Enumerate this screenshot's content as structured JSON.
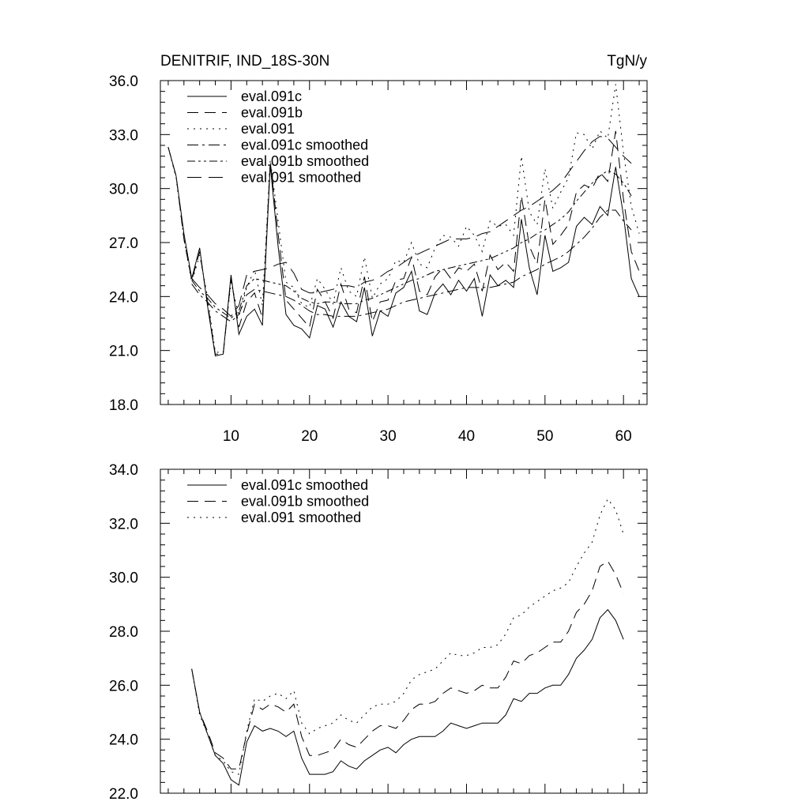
{
  "chart_data": [
    {
      "type": "line",
      "title": "DENITRIF, IND_18S-30N",
      "units": "TgN/y",
      "xlabel": "",
      "ylabel": "",
      "xlim": [
        1,
        63
      ],
      "ylim": [
        18.0,
        36.0
      ],
      "x_ticks": [
        "10",
        "20",
        "30",
        "40",
        "50",
        "60"
      ],
      "y_ticks": [
        "18.0",
        "21.0",
        "24.0",
        "27.0",
        "30.0",
        "33.0",
        "36.0"
      ],
      "legend_position": "top-left",
      "x_start": 2,
      "series": [
        {
          "name": "eval.091c",
          "style": "solid",
          "values": [
            32.3,
            30.7,
            27.5,
            25.0,
            26.7,
            23.5,
            20.7,
            20.8,
            25.2,
            21.9,
            22.9,
            23.3,
            22.4,
            31.3,
            26.8,
            23.0,
            22.4,
            22.2,
            21.7,
            23.5,
            23.3,
            22.3,
            23.7,
            22.9,
            22.6,
            24.5,
            21.8,
            23.2,
            22.9,
            24.2,
            24.5,
            25.4,
            23.2,
            23.0,
            24.2,
            24.7,
            24.1,
            24.9,
            24.3,
            25.0,
            22.9,
            25.2,
            24.6,
            24.9,
            24.5,
            28.3,
            25.6,
            24.1,
            27.4,
            25.4,
            25.6,
            25.9,
            27.9,
            28.4,
            28.0,
            29.0,
            28.5,
            31.2,
            28.5,
            25.0,
            24.0
          ]
        },
        {
          "name": "eval.091b",
          "style": "dashed",
          "values": [
            32.3,
            30.7,
            27.2,
            24.9,
            26.5,
            23.7,
            20.8,
            20.8,
            25.0,
            22.3,
            23.7,
            24.2,
            22.8,
            31.5,
            27.5,
            23.8,
            23.3,
            22.8,
            22.3,
            24.4,
            23.7,
            22.8,
            24.7,
            23.3,
            23.1,
            25.1,
            22.6,
            23.7,
            23.8,
            24.9,
            25.0,
            26.2,
            24.3,
            24.1,
            25.1,
            25.6,
            25.0,
            25.6,
            25.4,
            25.8,
            24.3,
            26.3,
            25.5,
            25.9,
            25.4,
            29.6,
            26.8,
            25.8,
            29.4,
            26.9,
            27.4,
            28.0,
            29.8,
            30.2,
            30.0,
            30.9,
            30.4,
            33.2,
            29.4,
            26.5,
            25.4
          ]
        },
        {
          "name": "eval.091",
          "style": "dotted",
          "values": [
            32.3,
            30.6,
            27.2,
            24.8,
            26.3,
            24.0,
            20.9,
            20.9,
            24.8,
            22.9,
            24.5,
            25.5,
            23.5,
            31.6,
            28.2,
            24.8,
            24.5,
            23.6,
            23.4,
            25.0,
            24.4,
            23.6,
            25.6,
            24.3,
            24.0,
            26.2,
            23.9,
            24.7,
            25.0,
            26.0,
            25.9,
            27.0,
            25.8,
            25.6,
            26.7,
            27.4,
            27.3,
            26.8,
            27.9,
            27.4,
            26.5,
            28.2,
            27.9,
            28.0,
            27.4,
            31.8,
            28.7,
            28.0,
            31.1,
            28.9,
            29.8,
            30.6,
            33.1,
            33.0,
            32.2,
            33.2,
            32.8,
            35.8,
            32.0,
            29.0,
            27.5
          ]
        },
        {
          "name": "eval.091c smoothed",
          "style": "dashdot",
          "values": [
            null,
            null,
            null,
            24.7,
            24.1,
            23.7,
            23.2,
            22.9,
            22.6,
            23.0,
            24.1,
            24.4,
            24.3,
            24.2,
            24.1,
            24.0,
            23.8,
            23.5,
            23.2,
            23.0,
            23.0,
            22.9,
            22.9,
            22.9,
            22.9,
            23.0,
            23.1,
            23.2,
            23.3,
            23.5,
            23.7,
            23.8,
            23.9,
            24.0,
            24.1,
            24.2,
            24.3,
            24.4,
            24.5,
            24.5,
            24.5,
            24.5,
            24.6,
            24.7,
            24.8,
            25.1,
            25.3,
            25.5,
            25.8,
            26.0,
            26.2,
            26.5,
            26.9,
            27.3,
            27.8,
            28.4,
            28.8,
            28.8,
            28.2,
            27.7,
            null
          ]
        },
        {
          "name": "eval.091b smoothed",
          "style": "dashdotdot",
          "values": [
            null,
            null,
            null,
            24.9,
            24.3,
            23.9,
            23.4,
            23.1,
            22.8,
            23.2,
            24.6,
            25.0,
            24.9,
            24.8,
            24.7,
            24.6,
            24.3,
            23.9,
            23.7,
            23.6,
            23.7,
            23.7,
            23.6,
            23.6,
            23.6,
            23.8,
            23.9,
            24.1,
            24.3,
            24.5,
            24.7,
            24.9,
            25.0,
            25.2,
            25.4,
            25.5,
            25.6,
            25.7,
            25.8,
            25.9,
            26.0,
            26.1,
            26.3,
            26.5,
            26.7,
            27.0,
            27.2,
            27.5,
            27.7,
            28.0,
            28.3,
            28.7,
            29.3,
            29.8,
            30.3,
            30.7,
            31.0,
            30.8,
            30.3,
            29.6,
            null
          ]
        },
        {
          "name": "eval.091 smoothed",
          "style": "longdash",
          "values": [
            null,
            null,
            null,
            25.0,
            24.5,
            24.1,
            23.6,
            23.3,
            22.9,
            23.5,
            25.2,
            25.4,
            25.5,
            25.6,
            25.8,
            25.9,
            25.3,
            24.4,
            24.2,
            24.2,
            24.3,
            24.4,
            24.6,
            24.6,
            24.5,
            24.8,
            24.9,
            25.1,
            25.4,
            25.6,
            25.9,
            26.2,
            26.4,
            26.6,
            26.8,
            27.0,
            27.2,
            27.2,
            27.2,
            27.3,
            27.5,
            27.6,
            27.9,
            28.2,
            28.5,
            28.8,
            29.0,
            29.3,
            29.6,
            29.9,
            30.3,
            30.9,
            31.5,
            32.1,
            32.6,
            32.9,
            32.8,
            32.3,
            31.8,
            31.4,
            null
          ]
        }
      ]
    },
    {
      "type": "line",
      "title": "",
      "xlabel": "",
      "ylabel": "",
      "xlim": [
        1,
        63
      ],
      "ylim": [
        22.0,
        34.0
      ],
      "y_ticks": [
        "22.0",
        "24.0",
        "26.0",
        "28.0",
        "30.0",
        "32.0",
        "34.0"
      ],
      "legend_position": "top-left",
      "x_start": 5,
      "series": [
        {
          "name": "eval.091c smoothed",
          "style": "solid",
          "values": [
            26.6,
            25.0,
            24.2,
            23.4,
            23.1,
            22.5,
            22.3,
            23.9,
            24.5,
            24.3,
            24.4,
            24.3,
            24.1,
            24.3,
            23.3,
            22.7,
            22.7,
            22.7,
            22.8,
            23.2,
            23.0,
            22.9,
            23.2,
            23.4,
            23.6,
            23.7,
            23.5,
            23.8,
            24.0,
            24.1,
            24.1,
            24.1,
            24.3,
            24.6,
            24.5,
            24.4,
            24.5,
            24.6,
            24.6,
            24.6,
            24.9,
            25.5,
            25.4,
            25.7,
            25.7,
            25.9,
            26.0,
            26.0,
            26.4,
            27.0,
            27.3,
            27.7,
            28.5,
            28.8,
            28.4,
            27.7
          ]
        },
        {
          "name": "eval.091b smoothed",
          "style": "dashed",
          "values": [
            26.6,
            25.0,
            24.3,
            23.5,
            23.3,
            22.9,
            22.9,
            24.2,
            25.3,
            25.1,
            25.3,
            25.2,
            25.0,
            25.3,
            24.1,
            23.4,
            23.4,
            23.5,
            23.6,
            24.0,
            23.8,
            23.7,
            24.0,
            24.3,
            24.5,
            24.5,
            24.4,
            24.7,
            25.1,
            25.3,
            25.3,
            25.4,
            25.7,
            25.9,
            25.8,
            25.7,
            25.8,
            26.0,
            25.9,
            25.9,
            26.3,
            26.9,
            26.8,
            27.1,
            27.2,
            27.4,
            27.6,
            27.6,
            28.0,
            28.7,
            29.0,
            29.5,
            30.4,
            30.6,
            30.1,
            29.4
          ]
        },
        {
          "name": "eval.091 smoothed",
          "style": "dotted",
          "values": [
            26.6,
            24.9,
            24.2,
            23.4,
            23.2,
            22.8,
            22.7,
            24.3,
            25.5,
            25.4,
            25.6,
            25.7,
            25.5,
            25.8,
            24.6,
            24.2,
            24.4,
            24.5,
            24.6,
            24.9,
            24.7,
            24.6,
            24.9,
            25.2,
            25.3,
            25.3,
            25.4,
            25.7,
            26.2,
            26.4,
            26.5,
            26.6,
            26.9,
            27.2,
            27.1,
            27.1,
            27.2,
            27.4,
            27.4,
            27.5,
            27.9,
            28.5,
            28.6,
            28.9,
            29.1,
            29.3,
            29.5,
            29.6,
            29.8,
            30.4,
            30.9,
            31.3,
            32.3,
            32.9,
            32.5,
            31.6
          ]
        }
      ]
    }
  ]
}
